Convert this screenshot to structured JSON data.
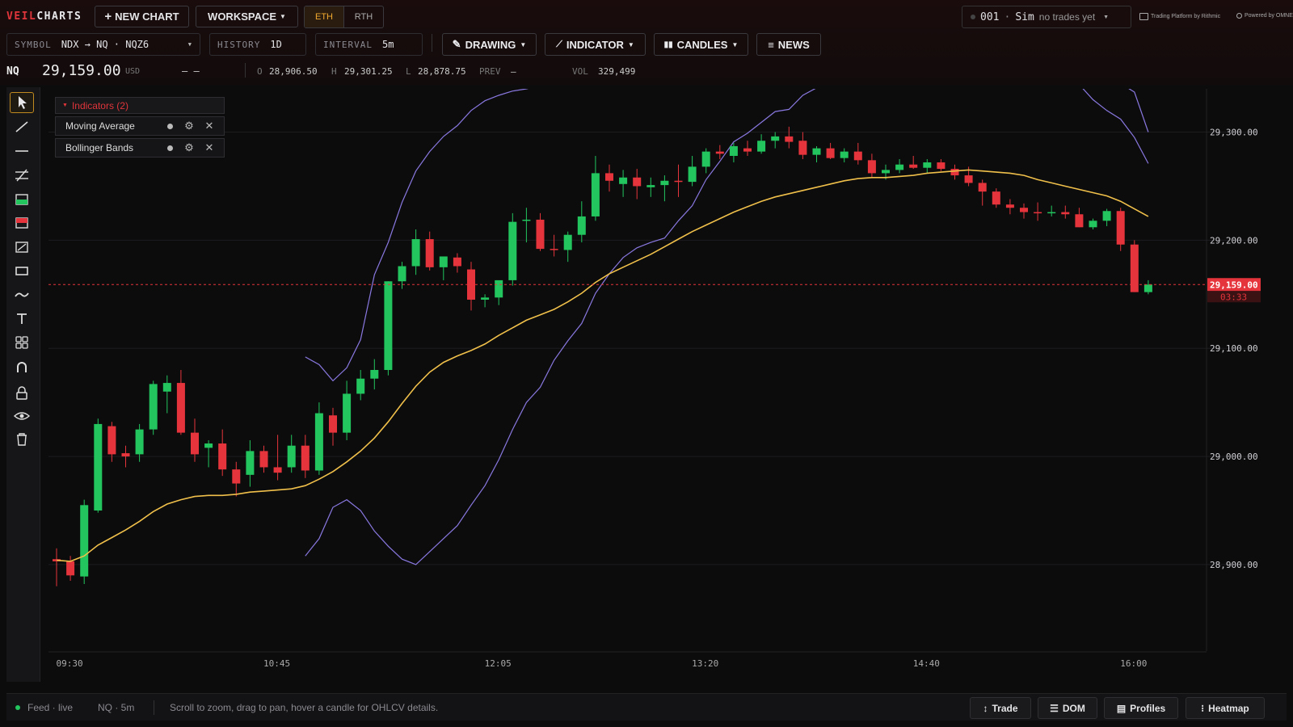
{
  "app": {
    "brand_a": "VEIL",
    "brand_b": "CHARTS"
  },
  "topbar": {
    "new_chart": "NEW CHART",
    "workspace": "WORKSPACE",
    "session_eth": "ETH",
    "session_rth": "RTH",
    "account_id": "001",
    "account_mode": "Sim",
    "account_status": "no trades yet",
    "platform_note": "Trading Platform by Rithmic",
    "powered_note": "Powered by OMNE"
  },
  "controls": {
    "symbol_label": "SYMBOL",
    "symbol_value": "NDX → NQ · NQZ6",
    "history_label": "HISTORY",
    "history_value": "1D",
    "interval_label": "INTERVAL",
    "interval_value": "5m",
    "drawing": "DRAWING",
    "indicator": "INDICATOR",
    "candles": "CANDLES",
    "news": "NEWS"
  },
  "quote": {
    "symbol": "NQ",
    "last": "29,159.00",
    "currency": "USD",
    "change": "– –",
    "open_label": "O",
    "open": "28,906.50",
    "high_label": "H",
    "high": "29,301.25",
    "low_label": "L",
    "low": "28,878.75",
    "prev_label": "PREV",
    "prev": "–",
    "vol_label": "VOL",
    "vol": "329,499"
  },
  "indicators": {
    "header": "Indicators (2)",
    "items": [
      {
        "name": "Moving Average"
      },
      {
        "name": "Bollinger Bands"
      }
    ]
  },
  "tools": [
    "cursor-icon",
    "trendline-icon",
    "horizontal-line-icon",
    "parallel-channel-icon",
    "long-position-icon",
    "short-position-icon",
    "measure-icon",
    "rectangle-icon",
    "curve-icon",
    "text-icon",
    "patterns-icon",
    "magnet-icon",
    "lock-icon",
    "eye-icon",
    "trash-icon"
  ],
  "colors": {
    "up": "#22c55e",
    "down": "#e5343b",
    "ma": "#f0c04a",
    "bb": "#8a78e0",
    "accent": "#e0353b",
    "session": "#f0a830"
  },
  "chart_data": {
    "type": "candlestick",
    "symbol": "NQ",
    "interval": "5m",
    "ylim": [
      28820,
      29340
    ],
    "yticks": [
      28900,
      29000,
      29100,
      29200,
      29300
    ],
    "ytick_labels": [
      "28,900.00",
      "29,000.00",
      "29,100.00",
      "29,200.00",
      "29,300.00"
    ],
    "xtick_labels": [
      "09:30",
      "10:45",
      "12:05",
      "13:20",
      "14:40",
      "16:00"
    ],
    "xtick_index": [
      1,
      16,
      32,
      47,
      63,
      78
    ],
    "last_price": 29159,
    "last_price_label": "29,159.00",
    "countdown": "03:33",
    "candles": [
      [
        28905,
        28915,
        28880,
        28903
      ],
      [
        28903,
        28908,
        28885,
        28890
      ],
      [
        28889,
        28960,
        28882,
        28955
      ],
      [
        28950,
        29035,
        28948,
        29030
      ],
      [
        29028,
        29032,
        28995,
        29002
      ],
      [
        29003,
        29010,
        28990,
        29000
      ],
      [
        29002,
        29030,
        28995,
        29025
      ],
      [
        29025,
        29070,
        29020,
        29067
      ],
      [
        29060,
        29075,
        29040,
        29068
      ],
      [
        29068,
        29080,
        29020,
        29022
      ],
      [
        29022,
        29035,
        28995,
        29002
      ],
      [
        29008,
        29015,
        28990,
        29012
      ],
      [
        29012,
        29025,
        28982,
        28988
      ],
      [
        28988,
        28995,
        28963,
        28975
      ],
      [
        28983,
        29015,
        28972,
        29005
      ],
      [
        29005,
        29010,
        28985,
        28990
      ],
      [
        28990,
        29020,
        28978,
        28985
      ],
      [
        28990,
        29020,
        28985,
        29010
      ],
      [
        29010,
        29020,
        28980,
        28987
      ],
      [
        28987,
        29050,
        28983,
        29040
      ],
      [
        29038,
        29045,
        29010,
        29022
      ],
      [
        29022,
        29070,
        29015,
        29058
      ],
      [
        29058,
        29080,
        29052,
        29072
      ],
      [
        29072,
        29090,
        29062,
        29080
      ],
      [
        29080,
        29162,
        29075,
        29162
      ],
      [
        29162,
        29180,
        29155,
        29176
      ],
      [
        29176,
        29210,
        29168,
        29201
      ],
      [
        29201,
        29208,
        29172,
        29175
      ],
      [
        29175,
        29183,
        29163,
        29185
      ],
      [
        29184,
        29188,
        29170,
        29176
      ],
      [
        29173,
        29180,
        29135,
        29145
      ],
      [
        29145,
        29150,
        29138,
        29147
      ],
      [
        29147,
        29160,
        29140,
        29163
      ],
      [
        29163,
        29225,
        29158,
        29217
      ],
      [
        29218,
        29230,
        29198,
        29219
      ],
      [
        29219,
        29225,
        29190,
        29192
      ],
      [
        29192,
        29205,
        29185,
        29191
      ],
      [
        29191,
        29208,
        29180,
        29205
      ],
      [
        29205,
        29236,
        29198,
        29222
      ],
      [
        29222,
        29278,
        29218,
        29262
      ],
      [
        29262,
        29270,
        29245,
        29255
      ],
      [
        29252,
        29265,
        29240,
        29258
      ],
      [
        29258,
        29266,
        29238,
        29250
      ],
      [
        29249,
        29258,
        29240,
        29251
      ],
      [
        29251,
        29260,
        29236,
        29255
      ],
      [
        29255,
        29270,
        29240,
        29254
      ],
      [
        29254,
        29278,
        29250,
        29268
      ],
      [
        29268,
        29285,
        29262,
        29282
      ],
      [
        29282,
        29288,
        29275,
        29280
      ],
      [
        29278,
        29290,
        29272,
        29287
      ],
      [
        29285,
        29292,
        29278,
        29282
      ],
      [
        29282,
        29298,
        29280,
        29292
      ],
      [
        29292,
        29300,
        29285,
        29296
      ],
      [
        29296,
        29305,
        29285,
        29291
      ],
      [
        29292,
        29300,
        29275,
        29279
      ],
      [
        29279,
        29287,
        29272,
        29285
      ],
      [
        29285,
        29290,
        29275,
        29276
      ],
      [
        29276,
        29285,
        29272,
        29282
      ],
      [
        29282,
        29290,
        29270,
        29274
      ],
      [
        29274,
        29280,
        29258,
        29262
      ],
      [
        29262,
        29270,
        29256,
        29265
      ],
      [
        29265,
        29275,
        29262,
        29270
      ],
      [
        29270,
        29278,
        29266,
        29267
      ],
      [
        29267,
        29275,
        29262,
        29272
      ],
      [
        29272,
        29275,
        29264,
        29266
      ],
      [
        29266,
        29270,
        29256,
        29260
      ],
      [
        29260,
        29268,
        29250,
        29253
      ],
      [
        29253,
        29256,
        29232,
        29245
      ],
      [
        29245,
        29248,
        29230,
        29233
      ],
      [
        29233,
        29238,
        29224,
        29230
      ],
      [
        29230,
        29234,
        29220,
        29226
      ],
      [
        29226,
        29235,
        29218,
        29225
      ],
      [
        29225,
        29232,
        29222,
        29226
      ],
      [
        29226,
        29232,
        29220,
        29224
      ],
      [
        29224,
        29230,
        29212,
        29212
      ],
      [
        29212,
        29220,
        29210,
        29218
      ],
      [
        29218,
        29229,
        29213,
        29227
      ],
      [
        29227,
        29230,
        29190,
        29196
      ],
      [
        29196,
        29200,
        29152,
        29152
      ],
      [
        29152,
        29163,
        29150,
        29159
      ]
    ],
    "ma_values": [
      28904,
      28903,
      28908,
      28918,
      28925,
      28932,
      28940,
      28949,
      28956,
      28960,
      28963,
      28964,
      28964,
      28965,
      28967,
      28968,
      28969,
      28970,
      28973,
      28979,
      28986,
      28995,
      29005,
      29017,
      29032,
      29049,
      29065,
      29078,
      29087,
      29093,
      29098,
      29104,
      29112,
      29119,
      29126,
      29131,
      29136,
      29143,
      29151,
      29161,
      29169,
      29175,
      29181,
      29187,
      29194,
      29201,
      29208,
      29214,
      29220,
      29226,
      29231,
      29236,
      29240,
      29243,
      29246,
      29249,
      29252,
      29255,
      29257,
      29258,
      29258,
      29259,
      29260,
      29262,
      29263,
      29264,
      29265,
      29264,
      29263,
      29262,
      29260,
      29256,
      29253,
      29250,
      29247,
      29244,
      29241,
      29236,
      29229,
      29222
    ],
    "bb_upper": [
      null,
      null,
      null,
      null,
      null,
      null,
      null,
      null,
      null,
      null,
      null,
      null,
      null,
      null,
      null,
      null,
      null,
      null,
      29092,
      29085,
      29070,
      29082,
      29108,
      29168,
      29198,
      29235,
      29264,
      29282,
      29296,
      29306,
      29320,
      29329,
      29334,
      29338,
      29340,
      29343,
      29349,
      29352,
      29356,
      29362,
      29367,
      29371,
      29381,
      29388,
      29398,
      29410,
      29420,
      29434,
      29447,
      29461,
      29471,
      29471,
      29472,
      29469,
      29466,
      29465,
      29465,
      29460,
      29455,
      29450,
      29445,
      29444,
      29446,
      29443,
      29439,
      29437,
      29434,
      29434,
      29430,
      29422,
      29410,
      29400,
      29390,
      29381,
      29372,
      29359,
      29350,
      29345,
      29337,
      29300
    ],
    "bb_lower": [
      null,
      null,
      null,
      null,
      null,
      null,
      null,
      null,
      null,
      null,
      null,
      null,
      null,
      null,
      null,
      null,
      null,
      null,
      28908,
      28924,
      28953,
      28960,
      28950,
      28931,
      28917,
      28905,
      28900,
      28912,
      28924,
      28936,
      28955,
      28973,
      28997,
      29025,
      29050,
      29064,
      29089,
      29107,
      29123,
      29151,
      29169,
      29184,
      29193,
      29198,
      29202,
      29218,
      29232,
      29256,
      29273,
      29291,
      29299,
      29309,
      29319,
      29321,
      29334,
      29341,
      29348,
      29352,
      29360,
      29371,
      29381,
      29388,
      29395,
      29405,
      29403,
      29405,
      29404,
      29390,
      29380,
      29377,
      29364,
      29357,
      29352,
      29347,
      29344,
      29330,
      29320,
      29312,
      29295,
      29271
    ]
  },
  "status": {
    "feed": "Feed · live",
    "instrument": "NQ · 5m",
    "hint": "Scroll to zoom, drag to pan, hover a candle for OHLCV details.",
    "buttons": [
      "Trade",
      "DOM",
      "Profiles",
      "Heatmap"
    ]
  }
}
